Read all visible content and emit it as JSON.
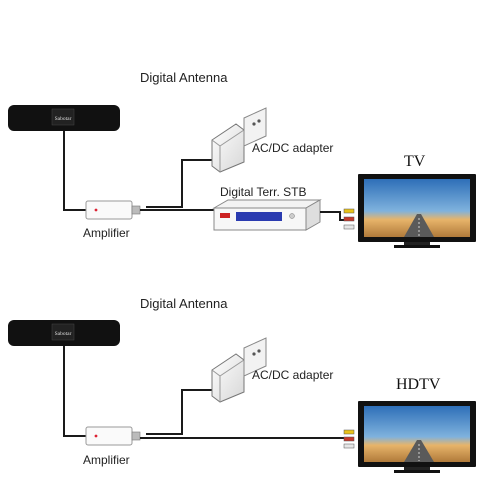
{
  "diagrams": [
    {
      "antenna_label": "Digital Antenna",
      "antenna_brand": "Sabotar",
      "adapter_label": "AC/DC adapter",
      "amplifier_label": "Amplifier",
      "stb_label": "Digital Terr. STB",
      "tv_label": "TV"
    },
    {
      "antenna_label": "Digital Antenna",
      "antenna_brand": "Sabotar",
      "adapter_label": "AC/DC adapter",
      "amplifier_label": "Amplifier",
      "tv_label": "HDTV"
    }
  ],
  "colors": {
    "cable": "#1a1a1a",
    "antenna_body": "#111111",
    "stb_display": "#2a3bb0",
    "plug_yellow": "#e8c21a",
    "plug_red": "#c43a2c",
    "plug_white": "#e6e6e6"
  }
}
